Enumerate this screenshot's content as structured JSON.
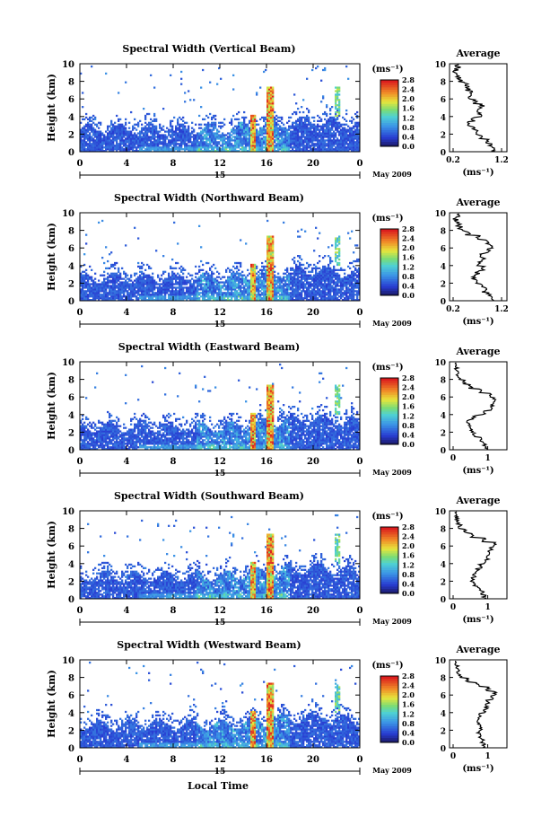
{
  "figure": {
    "avg_title": "Average",
    "height_label": "Height (km)",
    "unit_label": "(ms⁻¹)",
    "date_label": "May 2009",
    "day_label": "15",
    "local_time_label": "Local Time"
  },
  "chart_data": [
    {
      "type": "heatmap",
      "title": "Spectral Width (Vertical Beam)",
      "ylabel": "Height (km)",
      "xlim": [
        0,
        24
      ],
      "ylim": [
        0,
        10
      ],
      "xticks": [
        "0",
        "4",
        "8",
        "12",
        "16",
        "20",
        "0"
      ],
      "yticks": [
        "0",
        "2",
        "4",
        "6",
        "8",
        "10"
      ],
      "colorbar": {
        "label": "(ms⁻¹)",
        "ticks": [
          "0.0",
          "0.4",
          "0.8",
          "1.2",
          "1.6",
          "2.0",
          "2.4",
          "2.8"
        ]
      },
      "profile": {
        "title": "Average",
        "xlabel": "(ms⁻¹)",
        "xticks": [
          "0.2",
          "1.2"
        ],
        "xlim": [
          0.2,
          1.2
        ],
        "height_km": [
          0,
          0.5,
          1,
          1.5,
          2,
          2.5,
          3,
          3.5,
          4,
          4.5,
          5,
          5.5,
          6,
          6.5,
          7,
          7.5,
          8,
          8.5,
          9,
          9.5
        ],
        "values": [
          1.05,
          0.95,
          0.9,
          0.75,
          0.7,
          0.6,
          0.55,
          0.6,
          0.75,
          0.7,
          0.8,
          0.65,
          0.55,
          0.6,
          0.5,
          0.45,
          0.35,
          0.3,
          0.25,
          0.3
        ]
      }
    },
    {
      "type": "heatmap",
      "title": "Spectral Width (Northward Beam)",
      "ylabel": "Height (km)",
      "xlim": [
        0,
        24
      ],
      "ylim": [
        0,
        10
      ],
      "xticks": [
        "0",
        "4",
        "8",
        "12",
        "16",
        "20",
        "0"
      ],
      "yticks": [
        "0",
        "2",
        "4",
        "6",
        "8",
        "10"
      ],
      "colorbar": {
        "label": "(ms⁻¹)",
        "ticks": [
          "0.0",
          "0.4",
          "0.8",
          "1.2",
          "1.6",
          "2.0",
          "2.4",
          "2.8"
        ]
      },
      "profile": {
        "title": "Average",
        "xlabel": "(ms⁻¹)",
        "xticks": [
          "0.2",
          "1.2"
        ],
        "xlim": [
          0.2,
          1.2
        ],
        "height_km": [
          0,
          0.5,
          1,
          1.5,
          2,
          2.5,
          3,
          3.5,
          4,
          4.5,
          5,
          5.5,
          6,
          6.5,
          7,
          7.5,
          8,
          8.5,
          9,
          9.5
        ],
        "values": [
          1.0,
          0.95,
          0.85,
          0.8,
          0.7,
          0.65,
          0.7,
          0.8,
          0.75,
          0.85,
          0.8,
          0.95,
          1.0,
          0.9,
          0.7,
          0.5,
          0.35,
          0.3,
          0.25,
          0.3
        ]
      }
    },
    {
      "type": "heatmap",
      "title": "Spectral Width (Eastward Beam)",
      "ylabel": "Height (km)",
      "xlim": [
        0,
        24
      ],
      "ylim": [
        0,
        10
      ],
      "xticks": [
        "0",
        "4",
        "8",
        "12",
        "16",
        "20",
        "0"
      ],
      "yticks": [
        "0",
        "2",
        "4",
        "6",
        "8",
        "10"
      ],
      "colorbar": {
        "label": "(ms⁻¹)",
        "ticks": [
          "0.0",
          "0.4",
          "0.8",
          "1.2",
          "1.6",
          "2.0",
          "2.4",
          "2.8"
        ]
      },
      "profile": {
        "title": "Average",
        "xlabel": "(ms⁻¹)",
        "xticks": [
          "0",
          "1"
        ],
        "xlim": [
          0,
          1.4
        ],
        "height_km": [
          0,
          0.5,
          1,
          1.5,
          2,
          2.5,
          3,
          3.5,
          4,
          4.5,
          5,
          5.5,
          6,
          6.5,
          7,
          7.5,
          8,
          8.5,
          9,
          9.5
        ],
        "values": [
          0.95,
          0.9,
          0.8,
          0.6,
          0.55,
          0.5,
          0.45,
          0.6,
          0.9,
          1.1,
          1.15,
          1.2,
          1.1,
          0.8,
          0.5,
          0.3,
          0.15,
          0.1,
          0.1,
          0.1
        ]
      }
    },
    {
      "type": "heatmap",
      "title": "Spectral Width (Southward Beam)",
      "ylabel": "Height (km)",
      "xlim": [
        0,
        24
      ],
      "ylim": [
        0,
        10
      ],
      "xticks": [
        "0",
        "4",
        "8",
        "12",
        "16",
        "20",
        "0"
      ],
      "yticks": [
        "0",
        "2",
        "4",
        "6",
        "8",
        "10"
      ],
      "colorbar": {
        "label": "(ms⁻¹)",
        "ticks": [
          "0.0",
          "0.4",
          "0.8",
          "1.2",
          "1.6",
          "2.0",
          "2.4",
          "2.8"
        ]
      },
      "profile": {
        "title": "Average",
        "xlabel": "(ms⁻¹)",
        "xticks": [
          "0",
          "1"
        ],
        "xlim": [
          0,
          1.4
        ],
        "height_km": [
          0,
          0.5,
          1,
          1.5,
          2,
          2.5,
          3,
          3.5,
          4,
          4.5,
          5,
          5.5,
          6,
          6.5,
          7,
          7.5,
          8,
          8.5,
          9,
          9.5
        ],
        "values": [
          0.9,
          0.85,
          0.75,
          0.6,
          0.55,
          0.6,
          0.7,
          0.8,
          0.95,
          1.0,
          1.05,
          1.1,
          1.2,
          0.9,
          0.55,
          0.35,
          0.2,
          0.15,
          0.1,
          0.1
        ]
      }
    },
    {
      "type": "heatmap",
      "title": "Spectral Width (Westward Beam)",
      "ylabel": "Height (km)",
      "xlim": [
        0,
        24
      ],
      "ylim": [
        0,
        10
      ],
      "xticks": [
        "0",
        "4",
        "8",
        "12",
        "16",
        "20",
        "0"
      ],
      "yticks": [
        "0",
        "2",
        "4",
        "6",
        "8",
        "10"
      ],
      "colorbar": {
        "label": "(ms⁻¹)",
        "ticks": [
          "0.0",
          "0.4",
          "0.8",
          "1.2",
          "1.6",
          "2.0",
          "2.4",
          "2.8"
        ]
      },
      "profile": {
        "title": "Average",
        "xlabel": "(ms⁻¹)",
        "xticks": [
          "0",
          "1"
        ],
        "xlim": [
          0,
          1.4
        ],
        "height_km": [
          0,
          0.5,
          1,
          1.5,
          2,
          2.5,
          3,
          3.5,
          4,
          4.5,
          5,
          5.5,
          6,
          6.5,
          7,
          7.5,
          8,
          8.5,
          9,
          9.5
        ],
        "values": [
          0.9,
          0.85,
          0.8,
          0.75,
          0.8,
          0.75,
          0.7,
          0.8,
          0.9,
          0.95,
          1.0,
          1.1,
          1.2,
          1.0,
          0.7,
          0.4,
          0.2,
          0.15,
          0.1,
          0.1
        ]
      }
    }
  ]
}
